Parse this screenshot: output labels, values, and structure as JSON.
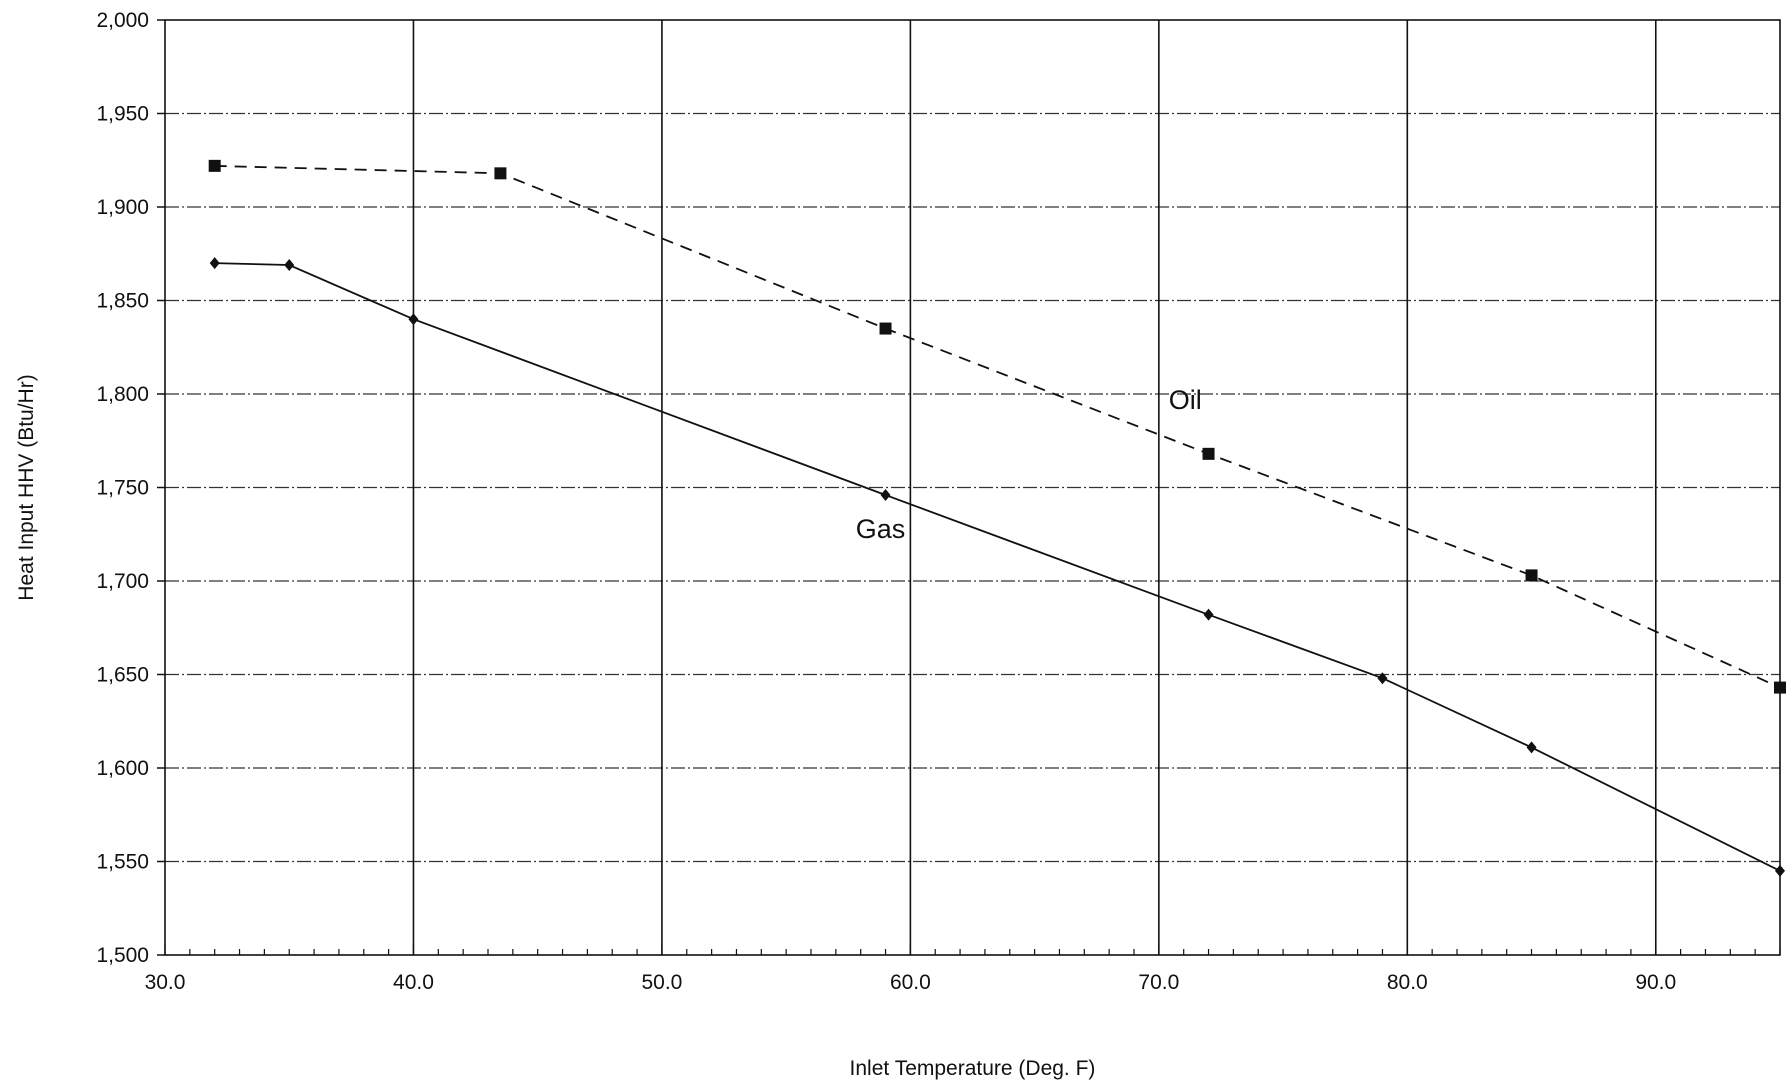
{
  "chart_data": {
    "type": "line",
    "xlabel": "Inlet Temperature (Deg. F)",
    "ylabel": "Heat Input HHV (Btu/Hr)",
    "xlim": [
      30,
      95
    ],
    "ylim": [
      1500,
      2000
    ],
    "x_ticks": [
      "30.0",
      "40.0",
      "50.0",
      "60.0",
      "70.0",
      "80.0",
      "90.0"
    ],
    "y_ticks": [
      "1,500",
      "1,550",
      "1,600",
      "1,650",
      "1,700",
      "1,750",
      "1,800",
      "1,850",
      "1,900",
      "1,950",
      "2,000"
    ],
    "grid": true,
    "series": [
      {
        "name": "Gas",
        "line_style": "solid",
        "marker": "diamond",
        "color": "#111111",
        "points": [
          [
            32,
            1870
          ],
          [
            35,
            1869
          ],
          [
            40,
            1840
          ],
          [
            59,
            1746
          ],
          [
            72,
            1682
          ],
          [
            79,
            1648
          ],
          [
            85,
            1611
          ],
          [
            95,
            1545
          ]
        ]
      },
      {
        "name": "Oil",
        "line_style": "dashed",
        "marker": "square",
        "color": "#111111",
        "points": [
          [
            32,
            1922
          ],
          [
            43.5,
            1918
          ],
          [
            59,
            1835
          ],
          [
            72,
            1768
          ],
          [
            85,
            1703
          ],
          [
            95,
            1643
          ]
        ]
      }
    ]
  }
}
